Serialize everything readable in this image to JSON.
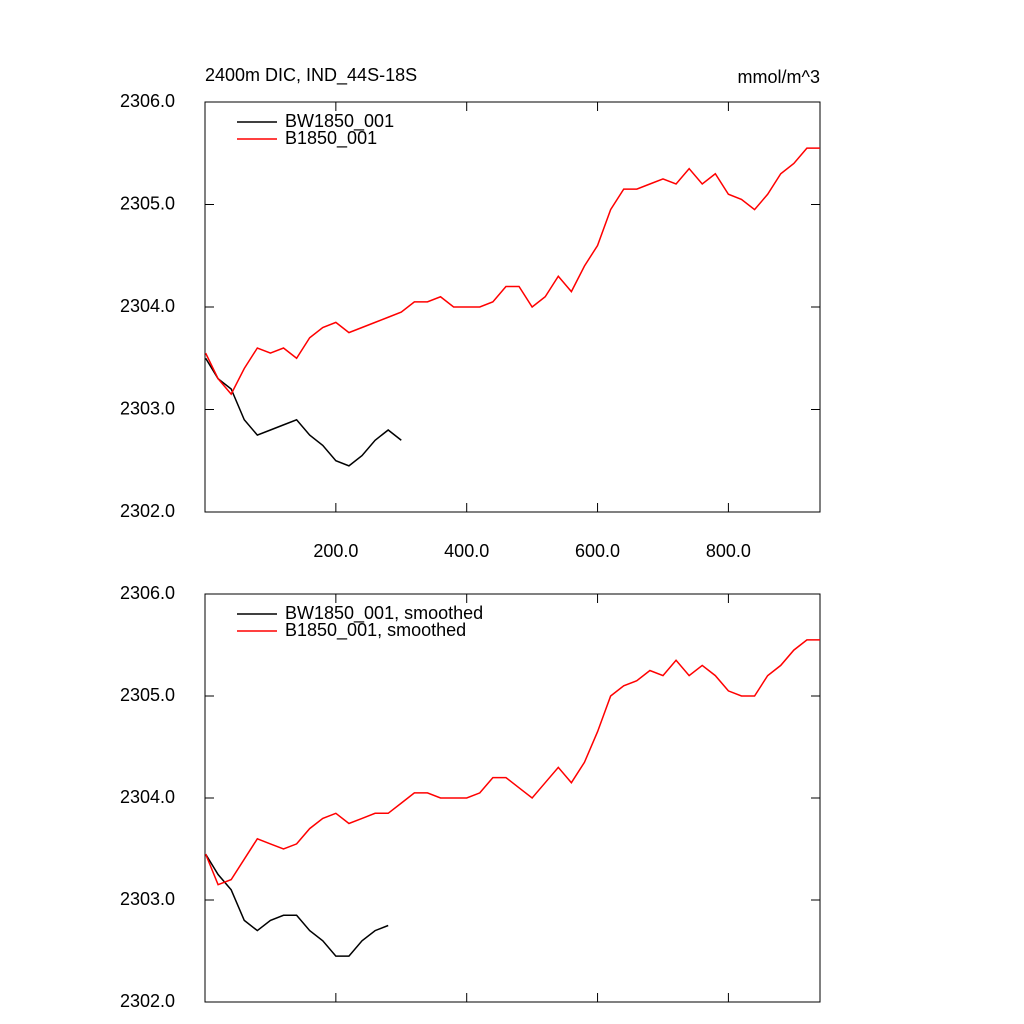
{
  "chart_data": [
    {
      "type": "line",
      "title": "2400m DIC, IND_44S-18S",
      "units": "mmol/m^3",
      "x": [
        1,
        20,
        40,
        60,
        80,
        100,
        120,
        140,
        160,
        180,
        200,
        220,
        240,
        260,
        280,
        300,
        320,
        340,
        360,
        380,
        400,
        420,
        440,
        460,
        480,
        500,
        520,
        540,
        560,
        580,
        600,
        620,
        640,
        660,
        680,
        700,
        720,
        740,
        760,
        780,
        800,
        820,
        840,
        860,
        880,
        900,
        920,
        940
      ],
      "series": [
        {
          "name": "BW1850_001",
          "color": "#000000",
          "values": [
            2303.5,
            2303.3,
            2303.2,
            2302.9,
            2302.75,
            2302.8,
            2302.85,
            2302.9,
            2302.75,
            2302.65,
            2302.5,
            2302.45,
            2302.55,
            2302.7,
            2302.8,
            2302.7,
            null,
            null,
            null,
            null,
            null,
            null,
            null,
            null,
            null,
            null,
            null,
            null,
            null,
            null,
            null,
            null,
            null,
            null,
            null,
            null,
            null,
            null,
            null,
            null,
            null,
            null,
            null,
            null,
            null,
            null,
            null,
            null
          ]
        },
        {
          "name": "B1850_001",
          "color": "#ff0000",
          "values": [
            2303.55,
            2303.3,
            2303.15,
            2303.4,
            2303.6,
            2303.55,
            2303.6,
            2303.5,
            2303.7,
            2303.8,
            2303.85,
            2303.75,
            2303.8,
            2303.85,
            2303.9,
            2303.95,
            2304.05,
            2304.05,
            2304.1,
            2304.0,
            2304.0,
            2304.0,
            2304.05,
            2304.2,
            2304.2,
            2304.0,
            2304.1,
            2304.3,
            2304.15,
            2304.4,
            2304.6,
            2304.95,
            2305.15,
            2305.15,
            2305.2,
            2305.25,
            2305.2,
            2305.35,
            2305.2,
            2305.3,
            2305.1,
            2305.05,
            2304.95,
            2305.1,
            2305.3,
            2305.4,
            2305.55,
            2305.55
          ]
        }
      ],
      "xlim": [
        0,
        940
      ],
      "ylim": [
        2302,
        2306
      ],
      "xticks": [
        {
          "value": 200,
          "label": "200.0"
        },
        {
          "value": 400,
          "label": "400.0"
        },
        {
          "value": 600,
          "label": "600.0"
        },
        {
          "value": 800,
          "label": "800.0"
        }
      ],
      "yticks": [
        {
          "value": 2302,
          "label": "2302.0"
        },
        {
          "value": 2303,
          "label": "2303.0"
        },
        {
          "value": 2304,
          "label": "2304.0"
        },
        {
          "value": 2305,
          "label": "2305.0"
        },
        {
          "value": 2306,
          "label": "2306.0"
        }
      ],
      "xtick_labels": true,
      "legend": "top-left"
    },
    {
      "type": "line",
      "x": [
        1,
        20,
        40,
        60,
        80,
        100,
        120,
        140,
        160,
        180,
        200,
        220,
        240,
        260,
        280,
        300,
        320,
        340,
        360,
        380,
        400,
        420,
        440,
        460,
        480,
        500,
        520,
        540,
        560,
        580,
        600,
        620,
        640,
        660,
        680,
        700,
        720,
        740,
        760,
        780,
        800,
        820,
        840,
        860,
        880,
        900,
        920,
        940
      ],
      "series": [
        {
          "name": "BW1850_001, smoothed",
          "color": "#000000",
          "values": [
            2303.45,
            2303.25,
            2303.1,
            2302.8,
            2302.7,
            2302.8,
            2302.85,
            2302.85,
            2302.7,
            2302.6,
            2302.45,
            2302.45,
            2302.6,
            2302.7,
            2302.75,
            null,
            null,
            null,
            null,
            null,
            null,
            null,
            null,
            null,
            null,
            null,
            null,
            null,
            null,
            null,
            null,
            null,
            null,
            null,
            null,
            null,
            null,
            null,
            null,
            null,
            null,
            null,
            null,
            null,
            null,
            null,
            null,
            null
          ]
        },
        {
          "name": "B1850_001, smoothed",
          "color": "#ff0000",
          "values": [
            2303.45,
            2303.15,
            2303.2,
            2303.4,
            2303.6,
            2303.55,
            2303.5,
            2303.55,
            2303.7,
            2303.8,
            2303.85,
            2303.75,
            2303.8,
            2303.85,
            2303.85,
            2303.95,
            2304.05,
            2304.05,
            2304.0,
            2304.0,
            2304.0,
            2304.05,
            2304.2,
            2304.2,
            2304.1,
            2304.0,
            2304.15,
            2304.3,
            2304.15,
            2304.35,
            2304.65,
            2305.0,
            2305.1,
            2305.15,
            2305.25,
            2305.2,
            2305.35,
            2305.2,
            2305.3,
            2305.2,
            2305.05,
            2305.0,
            2305.0,
            2305.2,
            2305.3,
            2305.45,
            2305.55,
            2305.55
          ]
        }
      ],
      "xlim": [
        0,
        940
      ],
      "ylim": [
        2302,
        2306
      ],
      "xticks": [
        200,
        400,
        600,
        800
      ],
      "yticks": [
        {
          "value": 2302,
          "label": "2302.0"
        },
        {
          "value": 2303,
          "label": "2303.0"
        },
        {
          "value": 2304,
          "label": "2304.0"
        },
        {
          "value": 2305,
          "label": "2305.0"
        },
        {
          "value": 2306,
          "label": "2306.0"
        }
      ],
      "xtick_labels": false,
      "legend": "top-left"
    }
  ]
}
